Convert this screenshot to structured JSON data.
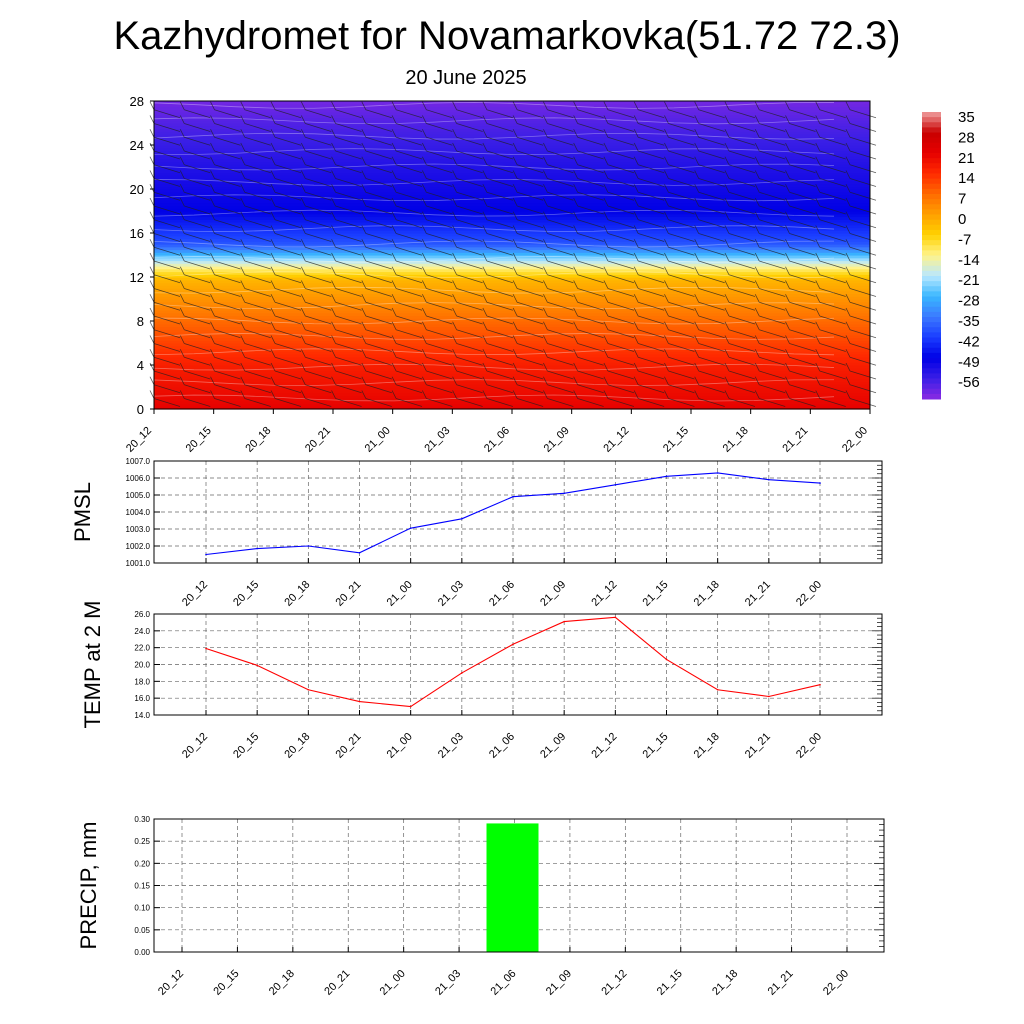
{
  "title": "Kazhydromet for Novamarkovka(51.72 72.3)",
  "subtitle": "20 June 2025",
  "time_labels": [
    "20_12",
    "20_15",
    "20_18",
    "20_21",
    "21_00",
    "21_03",
    "21_06",
    "21_09",
    "21_12",
    "21_15",
    "21_18",
    "21_21",
    "22_00"
  ],
  "colors": {
    "pmsl_line": "#0000ff",
    "temp_line": "#ff0000",
    "precip_bar": "#00ff00"
  },
  "chart_data": [
    {
      "type": "heatmap",
      "title": "",
      "xlabel": "",
      "ylabel": "",
      "y_ticks": [
        0,
        4,
        8,
        12,
        16,
        20,
        24,
        28
      ],
      "ylim": [
        0,
        28
      ],
      "colorbar": {
        "labels": [
          "35",
          "28",
          "21",
          "14",
          "7",
          "0",
          "-7",
          "-14",
          "-21",
          "-28",
          "-35",
          "-42",
          "-49",
          "-56"
        ],
        "range": [
          -60,
          38
        ],
        "colors": [
          "#8a2be2",
          "#3a1ee6",
          "#0000e6",
          "#1a3cff",
          "#3b79ff",
          "#39b7ff",
          "#b9e8ff",
          "#fff38c",
          "#ffd200",
          "#ffa000",
          "#ff6a00",
          "#ff2a00",
          "#e60000",
          "#c80000",
          "#f0a0a0"
        ]
      },
      "level_temps": [
        {
          "level": 0,
          "value": 24
        },
        {
          "level": 4,
          "value": 19
        },
        {
          "level": 8,
          "value": 10
        },
        {
          "level": 11.8,
          "value": 0
        },
        {
          "level": 12.8,
          "value": -10
        },
        {
          "level": 15,
          "value": -36
        },
        {
          "level": 18,
          "value": -46
        },
        {
          "level": 22,
          "value": -50
        },
        {
          "level": 26,
          "value": -55
        },
        {
          "level": 28,
          "value": -58
        }
      ]
    },
    {
      "type": "line",
      "ylabel": "PMSL",
      "ylim": [
        1001.0,
        1007.0
      ],
      "y_ticks": [
        "1001.0",
        "1002.0",
        "1003.0",
        "1004.0",
        "1005.0",
        "1006.0",
        "1007.0"
      ],
      "x": [
        "20_12",
        "20_15",
        "20_18",
        "20_21",
        "21_00",
        "21_03",
        "21_06",
        "21_09",
        "21_12",
        "21_15",
        "21_18",
        "21_21",
        "22_00"
      ],
      "series": [
        {
          "values": [
            1001.5,
            1001.85,
            1002.0,
            1001.6,
            1003.05,
            1003.6,
            1004.9,
            1005.1,
            1005.6,
            1006.1,
            1006.3,
            1005.9,
            1005.7
          ]
        }
      ]
    },
    {
      "type": "line",
      "ylabel": "TEMP at 2 M",
      "ylim": [
        14.0,
        26.0
      ],
      "y_ticks": [
        "14.0",
        "16.0",
        "18.0",
        "20.0",
        "22.0",
        "24.0",
        "26.0"
      ],
      "x": [
        "20_12",
        "20_15",
        "20_18",
        "20_21",
        "21_00",
        "21_03",
        "21_06",
        "21_09",
        "21_12",
        "21_15",
        "21_18",
        "21_21",
        "22_00"
      ],
      "series": [
        {
          "values": [
            21.9,
            19.9,
            17.0,
            15.6,
            15.0,
            19.0,
            22.4,
            25.1,
            25.6,
            20.6,
            17.0,
            16.2,
            17.6
          ]
        }
      ]
    },
    {
      "type": "bar",
      "ylabel": "PRECIP, mm",
      "ylim": [
        0.0,
        0.3
      ],
      "y_ticks": [
        "0.00",
        "0.05",
        "0.10",
        "0.15",
        "0.20",
        "0.25",
        "0.30"
      ],
      "categories": [
        "20_12",
        "20_15",
        "20_18",
        "20_21",
        "21_00",
        "21_03",
        "21_06",
        "21_09",
        "21_12",
        "21_15",
        "21_18",
        "21_21",
        "22_00"
      ],
      "values": [
        0,
        0,
        0,
        0,
        0,
        0,
        0.29,
        0,
        0,
        0,
        0,
        0,
        0
      ]
    }
  ]
}
